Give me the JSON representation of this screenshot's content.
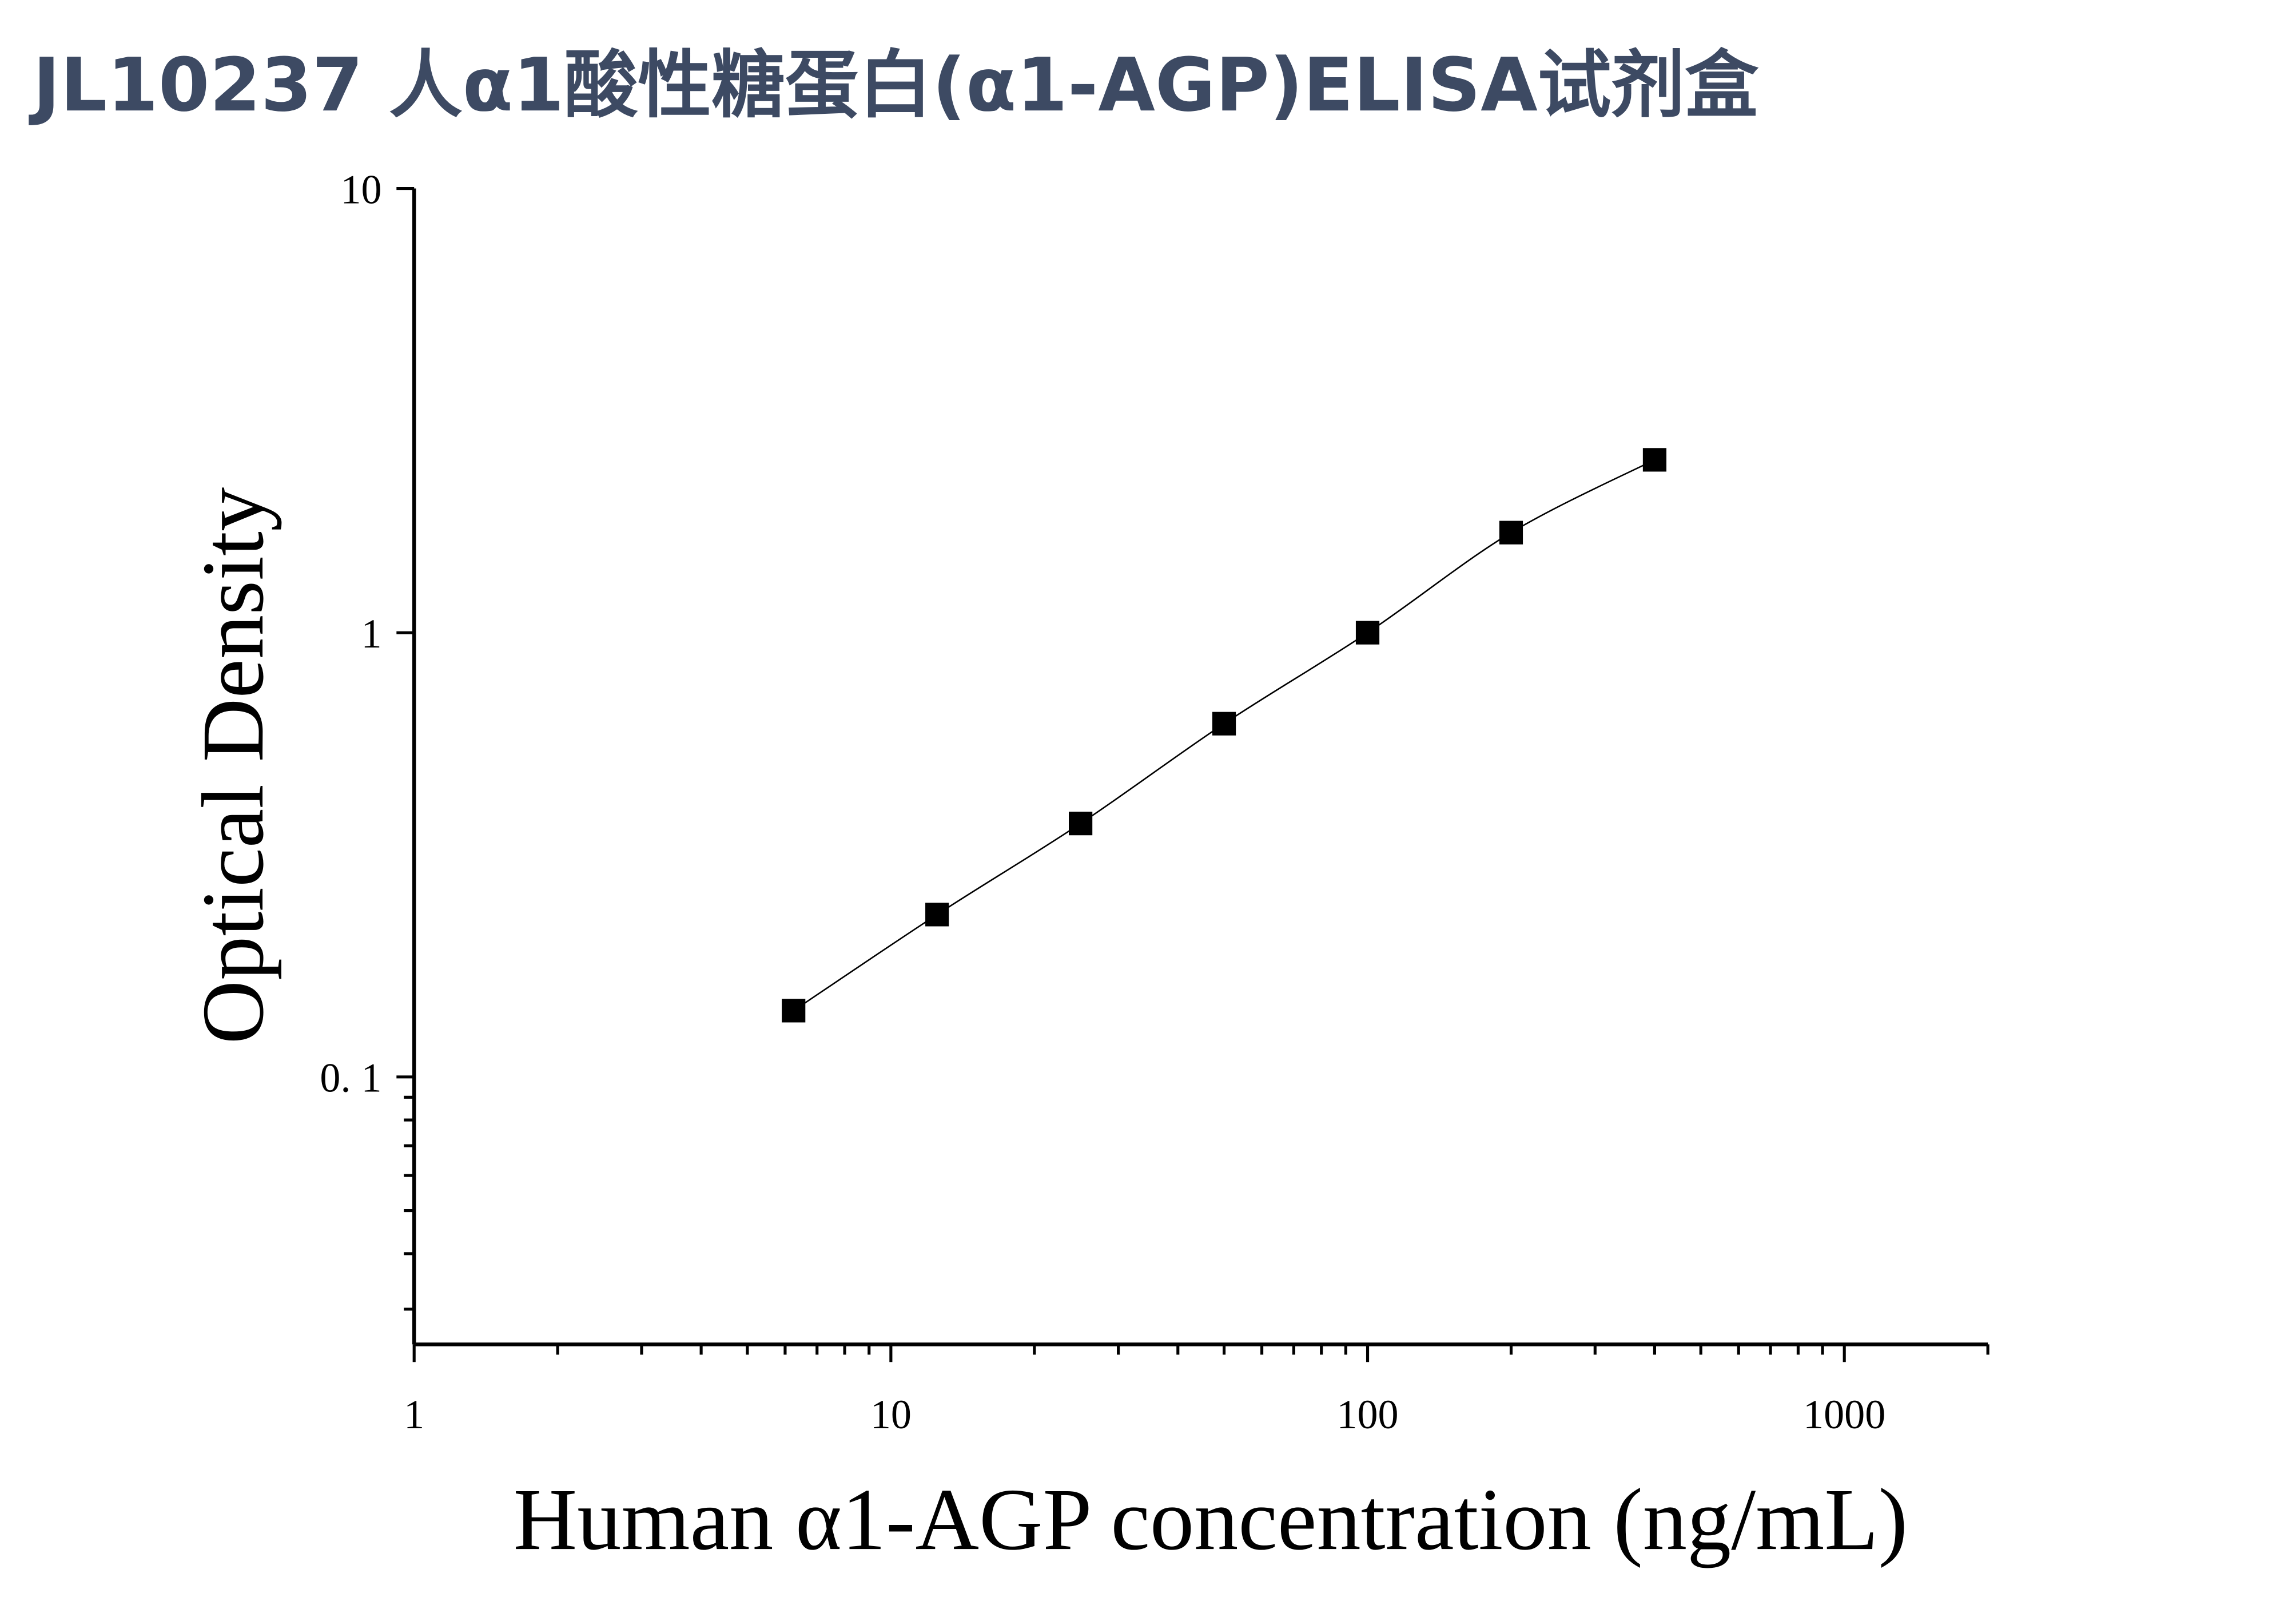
{
  "chart_data": {
    "type": "scatter",
    "title": "JL10237 人α1酸性糖蛋白(α1-AGP)ELISA试剂盒",
    "x_label": "Human α1-AGP concentration (ng/mL)",
    "y_label": "Optical Density",
    "xscale": "log",
    "yscale": "log",
    "xlim": [
      1,
      2000
    ],
    "ylim": [
      0.025,
      10
    ],
    "xticks": [
      1,
      10,
      100,
      1000
    ],
    "xminorticks": [
      2,
      3,
      4,
      5,
      6,
      7,
      8,
      9,
      20,
      30,
      40,
      50,
      60,
      70,
      80,
      90,
      200,
      300,
      400,
      500,
      600,
      700,
      800,
      900,
      2000
    ],
    "yticks": [
      {
        "value": 0.1,
        "label": "0. 1"
      },
      1,
      10
    ],
    "yminorticks": [
      0.03,
      0.04,
      0.05,
      0.06,
      0.07,
      0.08,
      0.09
    ],
    "color": "#000000",
    "fit_line": true,
    "x": [
      6.25,
      12.5,
      25,
      50,
      100,
      200,
      400
    ],
    "values": [
      0.141,
      0.232,
      0.372,
      0.624,
      1.0,
      1.68,
      2.45
    ]
  }
}
